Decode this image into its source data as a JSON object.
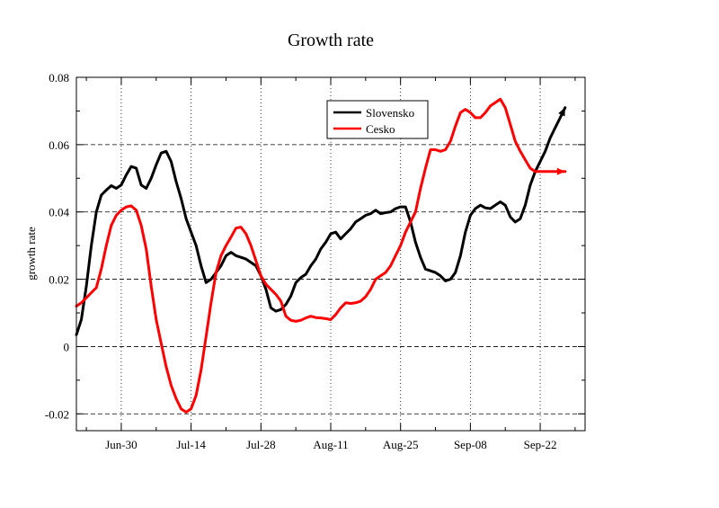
{
  "chart_data": {
    "type": "line",
    "title": "Growth rate",
    "xlabel": "",
    "ylabel": "growth rate",
    "ylim": [
      -0.025,
      0.08
    ],
    "xlim": [
      "2020-06-21",
      "2020-10-01"
    ],
    "x_ticks": [
      {
        "date": "2020-06-30",
        "label": "Jun-30"
      },
      {
        "date": "2020-07-14",
        "label": "Jul-14"
      },
      {
        "date": "2020-07-28",
        "label": "Jul-28"
      },
      {
        "date": "2020-08-11",
        "label": "Aug-11"
      },
      {
        "date": "2020-08-25",
        "label": "Aug-25"
      },
      {
        "date": "2020-09-08",
        "label": "Sep-08"
      },
      {
        "date": "2020-09-22",
        "label": "Sep-22"
      }
    ],
    "y_ticks": [
      {
        "value": -0.02,
        "label": "-0.02"
      },
      {
        "value": 0,
        "label": "0"
      },
      {
        "value": 0.02,
        "label": "0.02"
      },
      {
        "value": 0.04,
        "label": "0.04"
      },
      {
        "value": 0.06,
        "label": "0.06"
      },
      {
        "value": 0.08,
        "label": "0.08"
      }
    ],
    "grid": {
      "vertical": "dotted",
      "horizontal": "dashed"
    },
    "legend_position": "top-right",
    "series": [
      {
        "name": "Slovensko",
        "color": "#000000",
        "end_arrow": true,
        "x": [
          "2020-06-21",
          "2020-06-22",
          "2020-06-23",
          "2020-06-24",
          "2020-06-25",
          "2020-06-26",
          "2020-06-27",
          "2020-06-28",
          "2020-06-29",
          "2020-06-30",
          "2020-07-01",
          "2020-07-02",
          "2020-07-03",
          "2020-07-04",
          "2020-07-05",
          "2020-07-06",
          "2020-07-07",
          "2020-07-08",
          "2020-07-09",
          "2020-07-10",
          "2020-07-11",
          "2020-07-12",
          "2020-07-13",
          "2020-07-14",
          "2020-07-15",
          "2020-07-16",
          "2020-07-17",
          "2020-07-18",
          "2020-07-19",
          "2020-07-20",
          "2020-07-21",
          "2020-07-22",
          "2020-07-23",
          "2020-07-24",
          "2020-07-25",
          "2020-07-26",
          "2020-07-27",
          "2020-07-28",
          "2020-07-29",
          "2020-07-30",
          "2020-07-31",
          "2020-08-01",
          "2020-08-02",
          "2020-08-03",
          "2020-08-04",
          "2020-08-05",
          "2020-08-06",
          "2020-08-07",
          "2020-08-08",
          "2020-08-09",
          "2020-08-10",
          "2020-08-11",
          "2020-08-12",
          "2020-08-13",
          "2020-08-14",
          "2020-08-15",
          "2020-08-16",
          "2020-08-17",
          "2020-08-18",
          "2020-08-19",
          "2020-08-20",
          "2020-08-21",
          "2020-08-22",
          "2020-08-23",
          "2020-08-24",
          "2020-08-25",
          "2020-08-26",
          "2020-08-27",
          "2020-08-28",
          "2020-08-29",
          "2020-08-30",
          "2020-08-31",
          "2020-09-01",
          "2020-09-02",
          "2020-09-03",
          "2020-09-04",
          "2020-09-05",
          "2020-09-06",
          "2020-09-07",
          "2020-09-08",
          "2020-09-09",
          "2020-09-10",
          "2020-09-11",
          "2020-09-12",
          "2020-09-13",
          "2020-09-14",
          "2020-09-15",
          "2020-09-16",
          "2020-09-17",
          "2020-09-18",
          "2020-09-19",
          "2020-09-20",
          "2020-09-21",
          "2020-09-22",
          "2020-09-23",
          "2020-09-24",
          "2020-09-25",
          "2020-09-26",
          "2020-09-27"
        ],
        "y": [
          0.0035,
          0.008,
          0.018,
          0.03,
          0.04,
          0.045,
          0.0465,
          0.0478,
          0.047,
          0.048,
          0.051,
          0.0535,
          0.053,
          0.048,
          0.047,
          0.05,
          0.054,
          0.0575,
          0.058,
          0.055,
          0.049,
          0.044,
          0.038,
          0.034,
          0.03,
          0.024,
          0.019,
          0.02,
          0.022,
          0.024,
          0.027,
          0.028,
          0.027,
          0.0265,
          0.026,
          0.025,
          0.024,
          0.021,
          0.017,
          0.0115,
          0.0105,
          0.011,
          0.0125,
          0.015,
          0.019,
          0.0205,
          0.0215,
          0.024,
          0.026,
          0.029,
          0.031,
          0.0335,
          0.034,
          0.032,
          0.0335,
          0.035,
          0.037,
          0.038,
          0.039,
          0.0395,
          0.0405,
          0.0395,
          0.0398,
          0.04,
          0.041,
          0.0415,
          0.0415,
          0.037,
          0.031,
          0.0265,
          0.023,
          0.0225,
          0.022,
          0.021,
          0.0195,
          0.02,
          0.022,
          0.027,
          0.034,
          0.039,
          0.041,
          0.042,
          0.0412,
          0.041,
          0.042,
          0.043,
          0.042,
          0.0385,
          0.037,
          0.038,
          0.042,
          0.048,
          0.052,
          0.055,
          0.058,
          0.062,
          0.065,
          0.068,
          0.071
        ]
      },
      {
        "name": "Cesko",
        "color": "#ff0000",
        "end_arrow": true,
        "x": [
          "2020-06-21",
          "2020-06-22",
          "2020-06-23",
          "2020-06-24",
          "2020-06-25",
          "2020-06-26",
          "2020-06-27",
          "2020-06-28",
          "2020-06-29",
          "2020-06-30",
          "2020-07-01",
          "2020-07-02",
          "2020-07-03",
          "2020-07-04",
          "2020-07-05",
          "2020-07-06",
          "2020-07-07",
          "2020-07-08",
          "2020-07-09",
          "2020-07-10",
          "2020-07-11",
          "2020-07-12",
          "2020-07-13",
          "2020-07-14",
          "2020-07-15",
          "2020-07-16",
          "2020-07-17",
          "2020-07-18",
          "2020-07-19",
          "2020-07-20",
          "2020-07-21",
          "2020-07-22",
          "2020-07-23",
          "2020-07-24",
          "2020-07-25",
          "2020-07-26",
          "2020-07-27",
          "2020-07-28",
          "2020-07-29",
          "2020-07-30",
          "2020-07-31",
          "2020-08-01",
          "2020-08-02",
          "2020-08-03",
          "2020-08-04",
          "2020-08-05",
          "2020-08-06",
          "2020-08-07",
          "2020-08-08",
          "2020-08-09",
          "2020-08-10",
          "2020-08-11",
          "2020-08-12",
          "2020-08-13",
          "2020-08-14",
          "2020-08-15",
          "2020-08-16",
          "2020-08-17",
          "2020-08-18",
          "2020-08-19",
          "2020-08-20",
          "2020-08-21",
          "2020-08-22",
          "2020-08-23",
          "2020-08-24",
          "2020-08-25",
          "2020-08-26",
          "2020-08-27",
          "2020-08-28",
          "2020-08-29",
          "2020-08-30",
          "2020-08-31",
          "2020-09-01",
          "2020-09-02",
          "2020-09-03",
          "2020-09-04",
          "2020-09-05",
          "2020-09-06",
          "2020-09-07",
          "2020-09-08",
          "2020-09-09",
          "2020-09-10",
          "2020-09-11",
          "2020-09-12",
          "2020-09-13",
          "2020-09-14",
          "2020-09-15",
          "2020-09-16",
          "2020-09-17",
          "2020-09-18",
          "2020-09-19",
          "2020-09-20",
          "2020-09-21",
          "2020-09-22",
          "2020-09-23",
          "2020-09-24",
          "2020-09-25",
          "2020-09-26",
          "2020-09-27"
        ],
        "y": [
          0.012,
          0.013,
          0.0145,
          0.016,
          0.0175,
          0.023,
          0.03,
          0.036,
          0.039,
          0.0405,
          0.0415,
          0.0418,
          0.0405,
          0.036,
          0.029,
          0.018,
          0.008,
          0.001,
          -0.006,
          -0.0115,
          -0.0155,
          -0.0185,
          -0.0195,
          -0.0185,
          -0.0145,
          -0.007,
          0.003,
          0.013,
          0.022,
          0.027,
          0.03,
          0.0325,
          0.0352,
          0.0355,
          0.0335,
          0.03,
          0.0255,
          0.021,
          0.0185,
          0.017,
          0.0155,
          0.0135,
          0.009,
          0.0078,
          0.0075,
          0.0078,
          0.0085,
          0.009,
          0.0086,
          0.0085,
          0.0083,
          0.008,
          0.0095,
          0.0115,
          0.013,
          0.0128,
          0.013,
          0.0135,
          0.0148,
          0.017,
          0.02,
          0.021,
          0.022,
          0.024,
          0.027,
          0.03,
          0.034,
          0.037,
          0.04,
          0.047,
          0.053,
          0.0585,
          0.0585,
          0.058,
          0.0585,
          0.061,
          0.0655,
          0.0695,
          0.0705,
          0.0695,
          0.068,
          0.068,
          0.0695,
          0.0715,
          0.0725,
          0.0735,
          0.071,
          0.066,
          0.061,
          0.058,
          0.0555,
          0.053,
          0.052,
          0.052,
          0.052,
          0.052,
          0.052,
          0.052,
          0.052
        ]
      }
    ]
  }
}
